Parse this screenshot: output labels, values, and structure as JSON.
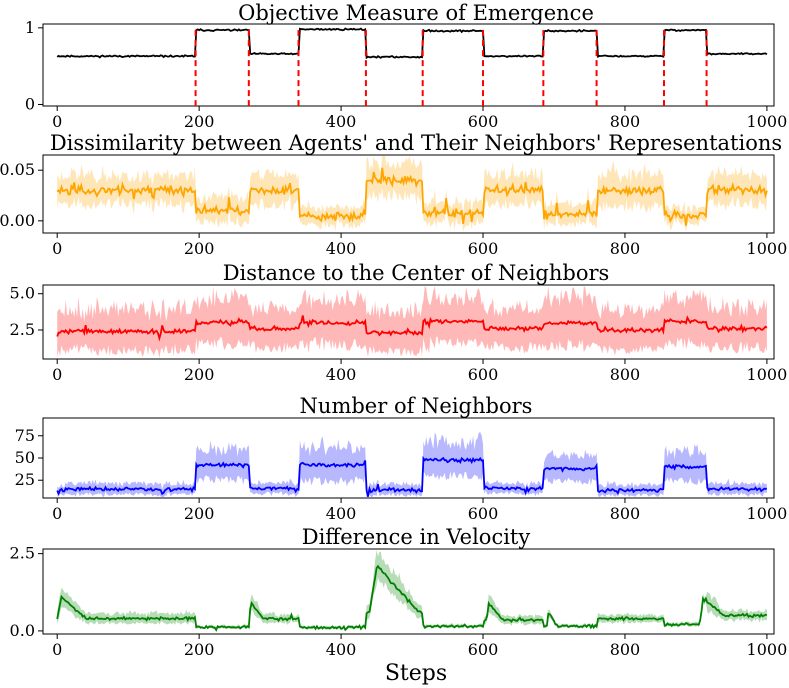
{
  "xlabel": "Steps",
  "colors": {
    "panel0": "#000000",
    "panel1": "#ffa500",
    "panel2": "#ff0000",
    "panel3": "#0000ff",
    "panel4": "#008000",
    "marker": "#ff0000"
  },
  "chart_data": [
    {
      "type": "line",
      "title": "Objective Measure of Emergence",
      "xlim": [
        -20,
        1010
      ],
      "ylim": [
        -0.02,
        1.05
      ],
      "xticks": [
        0,
        200,
        400,
        600,
        800,
        1000
      ],
      "xtick_labels": [
        "0",
        "200",
        "400",
        "600",
        "800",
        "1000"
      ],
      "yticks": [
        0,
        1
      ],
      "ytick_labels": [
        "0",
        "1"
      ],
      "band": false,
      "noise": 0.01,
      "seed": 11,
      "segments": [
        [
          0,
          195,
          0.63
        ],
        [
          195,
          270,
          0.97
        ],
        [
          270,
          340,
          0.66
        ],
        [
          340,
          435,
          0.98
        ],
        [
          435,
          515,
          0.62
        ],
        [
          515,
          600,
          0.96
        ],
        [
          600,
          685,
          0.63
        ],
        [
          685,
          760,
          0.96
        ],
        [
          760,
          855,
          0.63
        ],
        [
          855,
          915,
          0.97
        ],
        [
          915,
          1000,
          0.66
        ]
      ],
      "markers": [
        195,
        270,
        340,
        435,
        515,
        600,
        685,
        760,
        855,
        915
      ]
    },
    {
      "type": "line",
      "title": "Dissimilarity between Agents' and Their Neighbors' Representations",
      "xlim": [
        -20,
        1010
      ],
      "ylim": [
        -0.012,
        0.065
      ],
      "xticks": [
        0,
        200,
        400,
        600,
        800,
        1000
      ],
      "xtick_labels": [
        "0",
        "200",
        "400",
        "600",
        "800",
        "1000"
      ],
      "yticks": [
        0.0,
        0.05
      ],
      "ytick_labels": [
        "0.00",
        "0.05"
      ],
      "band": true,
      "noise": 0.004,
      "seed": 23,
      "segments": [
        [
          0,
          195,
          0.03,
          0.014
        ],
        [
          195,
          270,
          0.01,
          0.012
        ],
        [
          270,
          340,
          0.03,
          0.014
        ],
        [
          340,
          435,
          0.005,
          0.008
        ],
        [
          435,
          515,
          0.04,
          0.016
        ],
        [
          515,
          600,
          0.008,
          0.01
        ],
        [
          600,
          685,
          0.03,
          0.014
        ],
        [
          685,
          760,
          0.007,
          0.01
        ],
        [
          760,
          855,
          0.03,
          0.016
        ],
        [
          855,
          915,
          0.005,
          0.008
        ],
        [
          915,
          1000,
          0.03,
          0.014
        ]
      ]
    },
    {
      "type": "line",
      "title": "Distance to the Center of Neighbors",
      "xlim": [
        -20,
        1010
      ],
      "ylim": [
        0.5,
        5.6
      ],
      "xticks": [
        0,
        200,
        400,
        600,
        800,
        1000
      ],
      "xtick_labels": [
        "0",
        "200",
        "400",
        "600",
        "800",
        "1000"
      ],
      "yticks": [
        2.5,
        5.0
      ],
      "ytick_labels": [
        "2.5",
        "5.0"
      ],
      "band": true,
      "noise": 0.15,
      "seed": 37,
      "segments": [
        [
          0,
          195,
          2.4,
          1.3
        ],
        [
          195,
          270,
          3.0,
          1.5
        ],
        [
          270,
          340,
          2.6,
          1.3
        ],
        [
          340,
          435,
          3.0,
          1.5
        ],
        [
          435,
          515,
          2.3,
          1.3
        ],
        [
          515,
          600,
          3.1,
          1.5
        ],
        [
          600,
          685,
          2.6,
          1.3
        ],
        [
          685,
          760,
          3.0,
          1.5
        ],
        [
          760,
          855,
          2.5,
          1.3
        ],
        [
          855,
          915,
          3.1,
          1.5
        ],
        [
          915,
          1000,
          2.6,
          1.3
        ]
      ]
    },
    {
      "type": "line",
      "title": "Number of Neighbors",
      "xlim": [
        -20,
        1010
      ],
      "ylim": [
        5,
        95
      ],
      "xticks": [
        0,
        200,
        400,
        600,
        800,
        1000
      ],
      "xtick_labels": [
        "0",
        "200",
        "400",
        "600",
        "800",
        "1000"
      ],
      "yticks": [
        25,
        50,
        75
      ],
      "ytick_labels": [
        "25",
        "50",
        "75"
      ],
      "band": true,
      "noise": 2,
      "seed": 53,
      "segments": [
        [
          0,
          195,
          15,
          6
        ],
        [
          195,
          270,
          42,
          16
        ],
        [
          270,
          340,
          16,
          6
        ],
        [
          340,
          435,
          42,
          18
        ],
        [
          435,
          515,
          14,
          6
        ],
        [
          515,
          600,
          48,
          18
        ],
        [
          600,
          685,
          16,
          6
        ],
        [
          685,
          760,
          38,
          14
        ],
        [
          760,
          855,
          14,
          6
        ],
        [
          855,
          915,
          40,
          16
        ],
        [
          915,
          1000,
          15,
          6
        ]
      ]
    },
    {
      "type": "line",
      "title": "Difference in Velocity",
      "xlim": [
        -20,
        1010
      ],
      "ylim": [
        -0.1,
        2.65
      ],
      "xticks": [
        0,
        200,
        400,
        600,
        800,
        1000
      ],
      "xtick_labels": [
        "0",
        "200",
        "400",
        "600",
        "800",
        "1000"
      ],
      "yticks": [
        0.0,
        2.5
      ],
      "ytick_labels": [
        "0.0",
        "2.5"
      ],
      "band": true,
      "noise": 0.04,
      "seed": 71,
      "segments": [
        [
          0,
          195,
          0.4,
          0.15
        ],
        [
          195,
          270,
          0.12,
          0.05
        ],
        [
          270,
          340,
          0.4,
          0.12
        ],
        [
          340,
          435,
          0.12,
          0.05
        ],
        [
          435,
          515,
          0.6,
          0.2
        ],
        [
          515,
          600,
          0.15,
          0.05
        ],
        [
          600,
          685,
          0.35,
          0.12
        ],
        [
          685,
          760,
          0.15,
          0.05
        ],
        [
          760,
          855,
          0.4,
          0.12
        ],
        [
          855,
          915,
          0.2,
          0.06
        ],
        [
          915,
          1000,
          0.5,
          0.15
        ]
      ],
      "peaks": [
        [
          0,
          1.1,
          40
        ],
        [
          270,
          0.9,
          20
        ],
        [
          440,
          2.1,
          70
        ],
        [
          605,
          0.9,
          22
        ],
        [
          690,
          0.6,
          15
        ],
        [
          905,
          1.05,
          35
        ]
      ]
    }
  ]
}
